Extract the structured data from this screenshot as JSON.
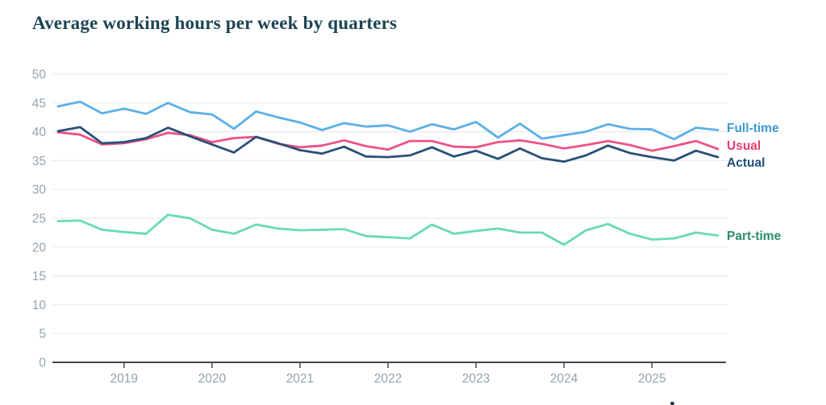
{
  "title": "Average working hours per week by quarters",
  "colors": {
    "title_text": "#1c4454",
    "grid": "#ebebee",
    "axis_line": "#40474d",
    "axis_text": "#94a3ad",
    "background": "#ffffff"
  },
  "chart_data": {
    "type": "line",
    "title": "Average working hours per week by quarters",
    "xlabel": "",
    "ylabel": "",
    "ylim": [
      0,
      50
    ],
    "y_ticks": [
      0,
      5,
      10,
      15,
      20,
      25,
      30,
      35,
      40,
      45,
      50
    ],
    "grid": "horizontal only",
    "legend_position": "right of line ends",
    "x_quarters": [
      "2018 Q2",
      "2018 Q3",
      "2018 Q4",
      "2019 Q1",
      "2019 Q2",
      "2019 Q3",
      "2019 Q4",
      "2020 Q1",
      "2020 Q2",
      "2020 Q3",
      "2020 Q4",
      "2021 Q1",
      "2021 Q2",
      "2021 Q3",
      "2021 Q4",
      "2022 Q1",
      "2022 Q2",
      "2022 Q3",
      "2022 Q4",
      "2023 Q1",
      "2023 Q2",
      "2023 Q3",
      "2023 Q4",
      "2024 Q1",
      "2024 Q2",
      "2024 Q3",
      "2024 Q4",
      "2025 Q1",
      "2025 Q2",
      "2025 Q3",
      "2025 Q4"
    ],
    "x_tick_years": [
      {
        "label": "2019",
        "index": 3
      },
      {
        "label": "2020",
        "index": 7
      },
      {
        "label": "2021",
        "index": 11
      },
      {
        "label": "2022",
        "index": 15
      },
      {
        "label": "2023",
        "index": 19
      },
      {
        "label": "2024",
        "index": 23
      },
      {
        "label": "2025",
        "index": 27
      }
    ],
    "series": [
      {
        "name": "Full-time",
        "color": "#5bb0e6",
        "label_color": "#3f97d6",
        "values": [
          44.4,
          45.2,
          43.2,
          44.0,
          43.1,
          45.0,
          43.4,
          43.0,
          40.5,
          43.5,
          42.5,
          41.6,
          40.3,
          41.5,
          40.9,
          41.1,
          40.0,
          41.3,
          40.4,
          41.7,
          39.0,
          41.4,
          38.8,
          39.4,
          40.0,
          41.3,
          40.5,
          40.4,
          38.7,
          40.7,
          40.3
        ]
      },
      {
        "name": "Usual",
        "color": "#ec5286",
        "label_color": "#e33d6f",
        "values": [
          39.9,
          39.5,
          37.8,
          38.0,
          38.7,
          39.8,
          39.4,
          38.2,
          38.9,
          39.1,
          37.9,
          37.3,
          37.6,
          38.5,
          37.5,
          36.9,
          38.4,
          38.4,
          37.4,
          37.3,
          38.2,
          38.5,
          37.9,
          37.1,
          37.7,
          38.4,
          37.7,
          36.7,
          37.5,
          38.4,
          37.0
        ]
      },
      {
        "name": "Actual",
        "color": "#294f77",
        "label_color": "#1d4e7a",
        "values": [
          40.1,
          40.8,
          38.0,
          38.2,
          38.9,
          40.7,
          39.2,
          37.8,
          36.4,
          39.1,
          38.0,
          36.8,
          36.2,
          37.4,
          35.7,
          35.6,
          35.9,
          37.3,
          35.7,
          36.7,
          35.3,
          37.1,
          35.4,
          34.8,
          35.9,
          37.6,
          36.3,
          35.6,
          35.0,
          36.7,
          35.6
        ]
      },
      {
        "name": "Part-time",
        "color": "#68dab4",
        "label_color": "#2e8a6d",
        "values": [
          24.5,
          24.6,
          23.0,
          22.6,
          22.3,
          25.6,
          25.0,
          23.0,
          22.3,
          23.9,
          23.2,
          22.9,
          23.0,
          23.1,
          21.9,
          21.7,
          21.5,
          23.9,
          22.3,
          22.8,
          23.2,
          22.5,
          22.5,
          20.4,
          22.9,
          24.0,
          22.3,
          21.3,
          21.5,
          22.5,
          22.0
        ]
      }
    ]
  }
}
